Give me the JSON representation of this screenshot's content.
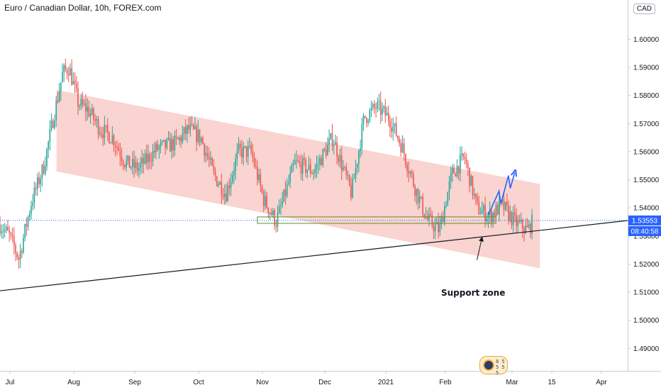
{
  "header": {
    "title": "Euro / Canadian Dollar, 10h, FOREX.com",
    "currency": "CAD"
  },
  "price_labels": {
    "last": "1.53553",
    "countdown": "08:40:58"
  },
  "annotation": {
    "text": "Support zone"
  },
  "watermark": {
    "text": "8 5 5 5 5"
  },
  "colors": {
    "up": "#26a69a",
    "down": "#ef5350",
    "channel_fill": "#f5b7b1",
    "support_box": "#5e8e2a",
    "projection": "#2962ff",
    "last_price": "#2962ff"
  },
  "chart_data": {
    "type": "candlestick",
    "symbol": "EURCAD",
    "timeframe": "10h",
    "xlabels": [
      "Jul",
      "Aug",
      "Sep",
      "Oct",
      "Nov",
      "Dec",
      "2021",
      "Feb",
      "Mar",
      "15",
      "Apr"
    ],
    "yticks": [
      1.49,
      1.5,
      1.51,
      1.52,
      1.53,
      1.54,
      1.55,
      1.56,
      1.57,
      1.58,
      1.59,
      1.6
    ],
    "ylim": [
      1.482,
      1.614
    ],
    "last_price": 1.53553,
    "price_path": [
      [
        0,
        1.534
      ],
      [
        0.015,
        1.53
      ],
      [
        0.03,
        1.522
      ],
      [
        0.05,
        1.542
      ],
      [
        0.07,
        1.555
      ],
      [
        0.085,
        1.572
      ],
      [
        0.1,
        1.588
      ],
      [
        0.11,
        1.59
      ],
      [
        0.125,
        1.577
      ],
      [
        0.14,
        1.575
      ],
      [
        0.16,
        1.568
      ],
      [
        0.18,
        1.565
      ],
      [
        0.2,
        1.556
      ],
      [
        0.22,
        1.554
      ],
      [
        0.25,
        1.561
      ],
      [
        0.28,
        1.563
      ],
      [
        0.3,
        1.568
      ],
      [
        0.32,
        1.565
      ],
      [
        0.34,
        1.552
      ],
      [
        0.36,
        1.545
      ],
      [
        0.38,
        1.56
      ],
      [
        0.4,
        1.56
      ],
      [
        0.42,
        1.543
      ],
      [
        0.44,
        1.535
      ],
      [
        0.47,
        1.556
      ],
      [
        0.5,
        1.553
      ],
      [
        0.53,
        1.565
      ],
      [
        0.56,
        1.545
      ],
      [
        0.58,
        1.572
      ],
      [
        0.6,
        1.576
      ],
      [
        0.62,
        1.572
      ],
      [
        0.64,
        1.562
      ],
      [
        0.66,
        1.548
      ],
      [
        0.68,
        1.536
      ],
      [
        0.7,
        1.532
      ],
      [
        0.72,
        1.552
      ],
      [
        0.74,
        1.558
      ],
      [
        0.76,
        1.54
      ],
      [
        0.78,
        1.537
      ],
      [
        0.8,
        1.541
      ],
      [
        0.82,
        1.535
      ],
      [
        0.84,
        1.532
      ],
      [
        0.85,
        1.5355
      ]
    ],
    "channel": {
      "upper": [
        [
          0.09,
          1.582
        ],
        [
          0.86,
          1.5485
        ]
      ],
      "lower": [
        [
          0.09,
          1.553
        ],
        [
          0.86,
          1.5185
        ]
      ]
    },
    "trendline": [
      [
        0,
        1.5105
      ],
      [
        1,
        1.5355
      ]
    ],
    "support_zone": {
      "x_start": 0.41,
      "x_end": 0.79,
      "y_low": 1.5345,
      "y_high": 1.5368
    },
    "projection_path": [
      [
        0.778,
        1.5375
      ],
      [
        0.795,
        1.546
      ],
      [
        0.798,
        1.5415
      ],
      [
        0.81,
        1.5515
      ],
      [
        0.813,
        1.547
      ],
      [
        0.82,
        1.5525
      ]
    ],
    "annotation_arrow": [
      [
        0.76,
        1.5215
      ],
      [
        0.768,
        1.5295
      ]
    ]
  }
}
